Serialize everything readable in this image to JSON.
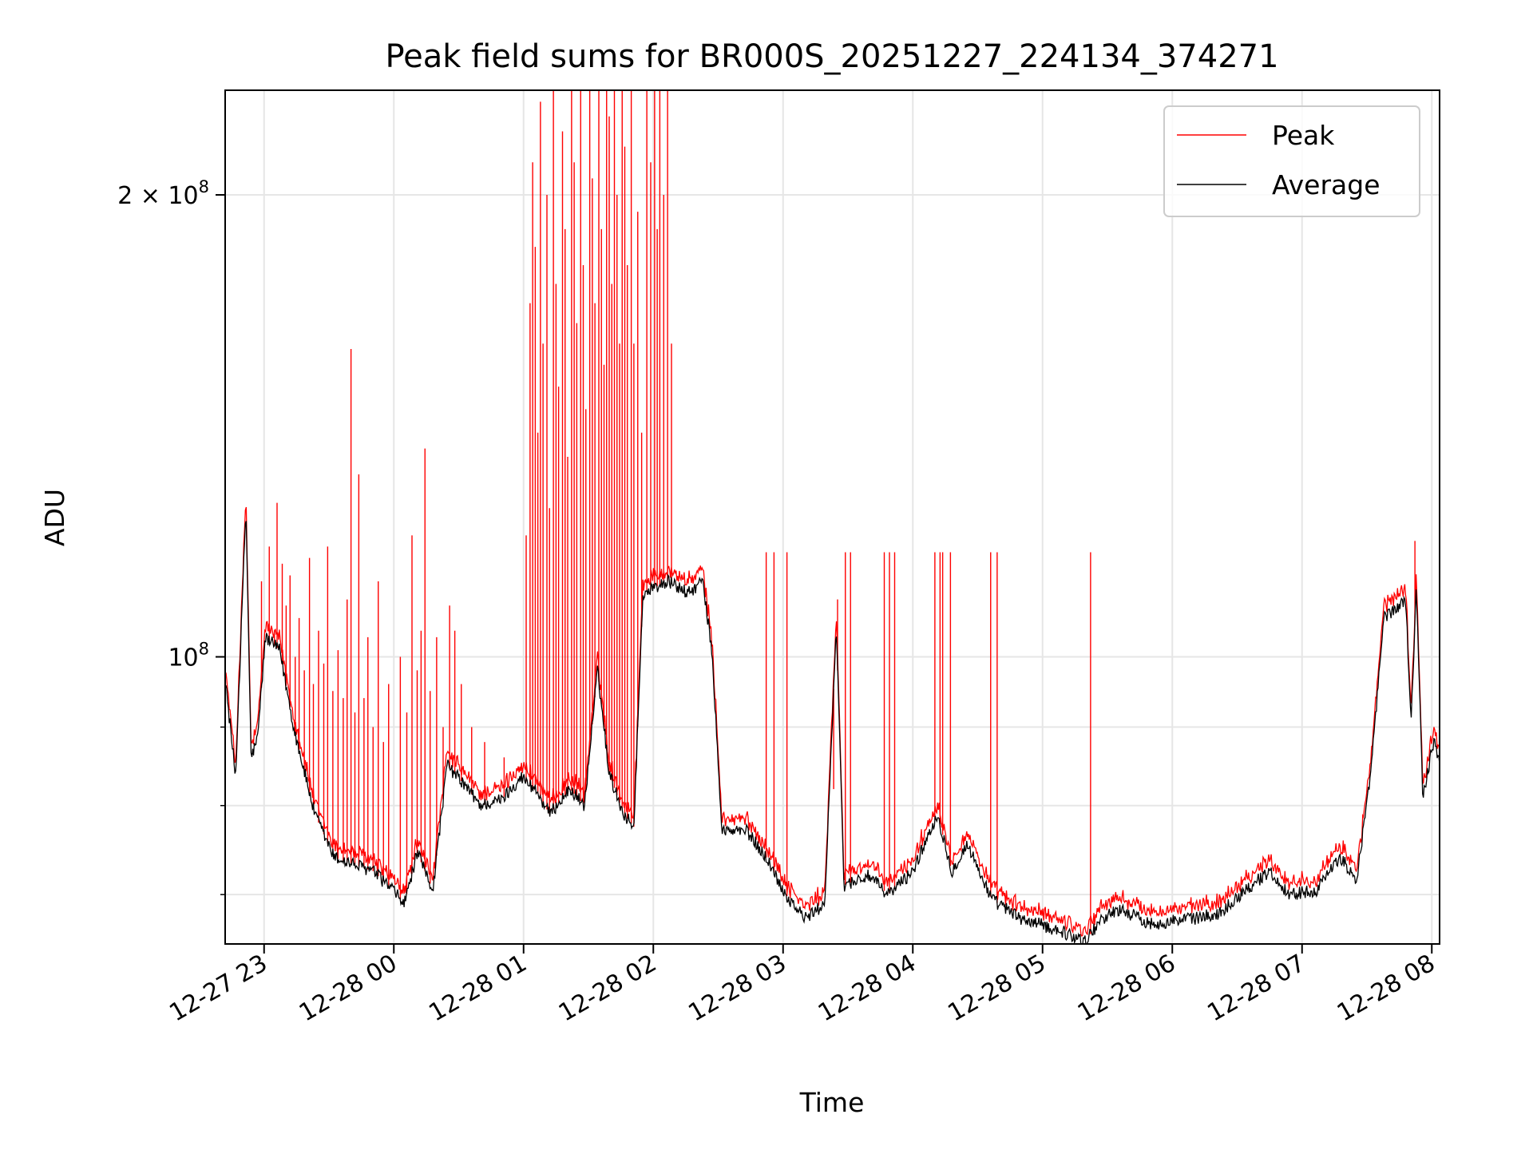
{
  "chart_data": {
    "type": "line",
    "title": "Peak field sums for BR000S_20251227_224134_374271",
    "xlabel": "Time",
    "ylabel": "ADU",
    "x_units": "hours since 12-27 00:00",
    "y_units": "ADU (millions)",
    "yscale": "log",
    "xlim": [
      22.7,
      32.06
    ],
    "ylim": [
      65.0,
      234.0
    ],
    "grid": true,
    "legend_position": "top-right",
    "x_ticks": [
      {
        "t": 23,
        "label": "12-27 23"
      },
      {
        "t": 24,
        "label": "12-28 00"
      },
      {
        "t": 25,
        "label": "12-28 01"
      },
      {
        "t": 26,
        "label": "12-28 02"
      },
      {
        "t": 27,
        "label": "12-28 03"
      },
      {
        "t": 28,
        "label": "12-28 04"
      },
      {
        "t": 29,
        "label": "12-28 05"
      },
      {
        "t": 30,
        "label": "12-28 06"
      },
      {
        "t": 31,
        "label": "12-28 07"
      },
      {
        "t": 32,
        "label": "12-28 08"
      }
    ],
    "y_ticks": [
      {
        "v": 100,
        "base": "10",
        "exp": "8"
      },
      {
        "v": 200,
        "base": "2 × 10",
        "exp": "8"
      }
    ],
    "y_minor_ticks": [
      70,
      80,
      90
    ],
    "series": [
      {
        "name": "Peak",
        "color": "#ff0000",
        "spikes": [
          [
            22.98,
            112
          ],
          [
            23.04,
            118
          ],
          [
            23.08,
            104
          ],
          [
            23.1,
            126
          ],
          [
            23.14,
            115
          ],
          [
            23.17,
            108
          ],
          [
            23.2,
            113
          ],
          [
            23.24,
            100
          ],
          [
            23.27,
            106
          ],
          [
            23.31,
            98
          ],
          [
            23.35,
            116
          ],
          [
            23.38,
            96
          ],
          [
            23.42,
            104
          ],
          [
            23.46,
            99
          ],
          [
            23.49,
            118
          ],
          [
            23.53,
            95
          ],
          [
            23.57,
            101
          ],
          [
            23.61,
            94
          ],
          [
            23.64,
            109
          ],
          [
            23.67,
            158.7
          ],
          [
            23.7,
            92
          ],
          [
            23.73,
            131.5
          ],
          [
            23.77,
            94
          ],
          [
            23.8,
            103
          ],
          [
            23.84,
            90
          ],
          [
            23.88,
            112
          ],
          [
            23.92,
            88
          ],
          [
            23.96,
            96
          ],
          [
            24.05,
            100
          ],
          [
            24.1,
            92
          ],
          [
            24.14,
            120
          ],
          [
            24.18,
            98
          ],
          [
            24.21,
            104
          ],
          [
            24.24,
            136.7
          ],
          [
            24.28,
            95
          ],
          [
            24.33,
            103
          ],
          [
            24.38,
            90
          ],
          [
            24.43,
            108
          ],
          [
            24.47,
            104
          ],
          [
            24.52,
            96
          ],
          [
            24.6,
            90
          ],
          [
            24.7,
            88
          ],
          [
            24.85,
            86
          ],
          [
            25.02,
            120
          ],
          [
            25.05,
            170
          ],
          [
            25.07,
            210
          ],
          [
            25.09,
            185
          ],
          [
            25.11,
            140
          ],
          [
            25.13,
            230
          ],
          [
            25.15,
            160
          ],
          [
            25.18,
            200
          ],
          [
            25.2,
            125
          ],
          [
            25.23,
            234
          ],
          [
            25.25,
            175
          ],
          [
            25.27,
            150
          ],
          [
            25.3,
            220
          ],
          [
            25.32,
            190
          ],
          [
            25.34,
            135
          ],
          [
            25.37,
            234
          ],
          [
            25.39,
            210
          ],
          [
            25.41,
            165
          ],
          [
            25.44,
            234
          ],
          [
            25.46,
            180
          ],
          [
            25.48,
            145
          ],
          [
            25.51,
            234
          ],
          [
            25.53,
            205
          ],
          [
            25.55,
            170
          ],
          [
            25.58,
            234
          ],
          [
            25.6,
            190
          ],
          [
            25.62,
            155
          ],
          [
            25.64,
            234
          ],
          [
            25.66,
            225
          ],
          [
            25.68,
            175
          ],
          [
            25.7,
            234
          ],
          [
            25.72,
            200
          ],
          [
            25.74,
            160
          ],
          [
            25.76,
            234
          ],
          [
            25.78,
            215
          ],
          [
            25.8,
            180
          ],
          [
            25.83,
            234
          ],
          [
            25.85,
            160
          ],
          [
            25.88,
            195
          ],
          [
            25.91,
            140
          ],
          [
            25.95,
            234
          ],
          [
            25.98,
            210
          ],
          [
            26.01,
            234
          ],
          [
            26.03,
            190
          ],
          [
            26.05,
            234
          ],
          [
            26.08,
            200
          ],
          [
            26.11,
            234
          ],
          [
            26.14,
            160
          ],
          [
            26.87,
            117
          ],
          [
            26.93,
            117
          ],
          [
            27.03,
            117
          ],
          [
            27.39,
            82
          ],
          [
            27.42,
            109
          ],
          [
            27.48,
            117
          ],
          [
            27.52,
            117
          ],
          [
            27.78,
            117
          ],
          [
            27.82,
            117
          ],
          [
            27.86,
            117
          ],
          [
            28.17,
            117
          ],
          [
            28.21,
            117
          ],
          [
            28.23,
            117
          ],
          [
            28.29,
            117
          ],
          [
            28.6,
            117
          ],
          [
            28.65,
            117
          ],
          [
            29.37,
            117
          ],
          [
            31.87,
            119
          ]
        ]
      },
      {
        "name": "Average",
        "color": "#000000",
        "points": [
          [
            22.7,
            96.8
          ],
          [
            22.78,
            83.5
          ],
          [
            22.86,
            125
          ],
          [
            22.9,
            86
          ],
          [
            22.95,
            88.5
          ],
          [
            23.01,
            103
          ],
          [
            23.12,
            101
          ],
          [
            23.23,
            89.8
          ],
          [
            23.39,
            79
          ],
          [
            23.54,
            74
          ],
          [
            23.84,
            72.5
          ],
          [
            23.99,
            70.5
          ],
          [
            24.08,
            69
          ],
          [
            24.18,
            74.5
          ],
          [
            24.3,
            70.5
          ],
          [
            24.41,
            85
          ],
          [
            24.52,
            83
          ],
          [
            24.67,
            80
          ],
          [
            24.83,
            80.7
          ],
          [
            24.98,
            83.5
          ],
          [
            25.09,
            82
          ],
          [
            25.2,
            79
          ],
          [
            25.36,
            82
          ],
          [
            25.47,
            80
          ],
          [
            25.57,
            98
          ],
          [
            25.66,
            84
          ],
          [
            25.77,
            79
          ],
          [
            25.85,
            77.5
          ],
          [
            25.92,
            110
          ],
          [
            26.11,
            112
          ],
          [
            26.27,
            110
          ],
          [
            26.38,
            112
          ],
          [
            26.45,
            101.2
          ],
          [
            26.53,
            77
          ],
          [
            26.72,
            77
          ],
          [
            26.87,
            74
          ],
          [
            27.02,
            70
          ],
          [
            27.17,
            67.5
          ],
          [
            27.32,
            69
          ],
          [
            27.41,
            104.5
          ],
          [
            27.47,
            71
          ],
          [
            27.66,
            72
          ],
          [
            27.81,
            70
          ],
          [
            28.0,
            72.5
          ],
          [
            28.19,
            79
          ],
          [
            28.3,
            72.5
          ],
          [
            28.42,
            75.5
          ],
          [
            28.61,
            69.5
          ],
          [
            28.83,
            67.5
          ],
          [
            29.14,
            66.3
          ],
          [
            29.33,
            65.2
          ],
          [
            29.45,
            67.5
          ],
          [
            29.6,
            68.5
          ],
          [
            29.83,
            67
          ],
          [
            30.14,
            67.5
          ],
          [
            30.36,
            68
          ],
          [
            30.52,
            70
          ],
          [
            30.75,
            72.5
          ],
          [
            30.9,
            70
          ],
          [
            31.11,
            70.5
          ],
          [
            31.3,
            74
          ],
          [
            31.42,
            71.5
          ],
          [
            31.53,
            84
          ],
          [
            31.63,
            106
          ],
          [
            31.8,
            109
          ],
          [
            31.84,
            90
          ],
          [
            31.88,
            112
          ],
          [
            31.93,
            81
          ],
          [
            32.02,
            88.5
          ],
          [
            32.06,
            85
          ]
        ]
      }
    ]
  }
}
